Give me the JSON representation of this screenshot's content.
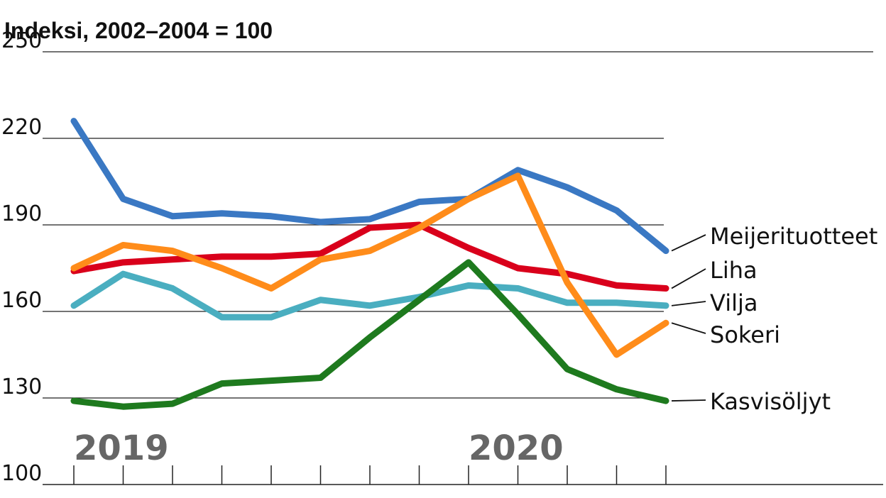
{
  "chart_data": {
    "type": "line",
    "title": "Indeksi, 2002–2004 = 100",
    "ylim": [
      100,
      250
    ],
    "yticks": [
      "250",
      "220",
      "190",
      "160",
      "130",
      "100"
    ],
    "grid": true,
    "year_labels": [
      "2019",
      "2020"
    ],
    "series": [
      {
        "name": "Meijerituotteet",
        "color": "#3a78c3",
        "values": [
          226,
          199,
          193,
          194,
          193,
          191,
          192,
          198,
          199,
          209,
          203,
          195,
          181
        ]
      },
      {
        "name": "Liha",
        "color": "#d9001b",
        "values": [
          174,
          177,
          178,
          179,
          179,
          180,
          189,
          190,
          182,
          175,
          173,
          169,
          168
        ]
      },
      {
        "name": "Vilja",
        "color": "#4aaec0",
        "values": [
          162,
          173,
          168,
          158,
          158,
          164,
          162,
          165,
          169,
          168,
          163,
          163,
          162
        ]
      },
      {
        "name": "Sokeri",
        "color": "#ff8c1a",
        "values": [
          175,
          183,
          181,
          175,
          168,
          178,
          181,
          189,
          199,
          207,
          170,
          145,
          156
        ]
      },
      {
        "name": "Kasvisöljyt",
        "color": "#1e7a1e",
        "values": [
          129,
          127,
          128,
          135,
          136,
          137,
          151,
          164,
          177,
          159,
          140,
          133,
          129
        ]
      }
    ]
  }
}
